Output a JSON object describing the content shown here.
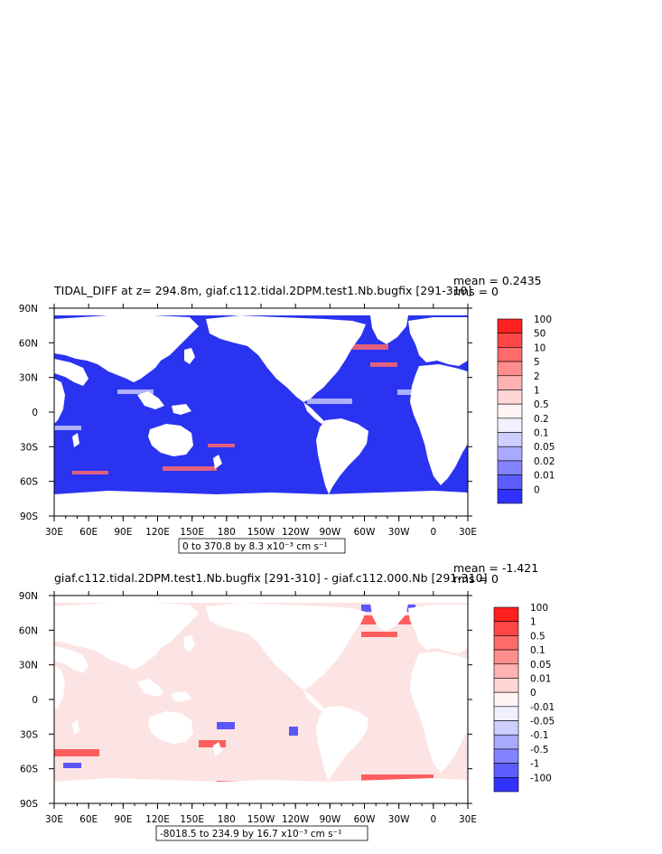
{
  "chart_data": [
    {
      "type": "heatmap",
      "title": "TIDAL_DIFF at z= 294.8m, giaf.c112.tidal.2DPM.test1.Nb.bugfix [291-310]",
      "stats": {
        "mean": "mean = 0.2435",
        "rms": "rms = 0"
      },
      "xticks": [
        "30E",
        "60E",
        "90E",
        "120E",
        "150E",
        "180",
        "150W",
        "120W",
        "90W",
        "60W",
        "30W",
        "0",
        "30E"
      ],
      "yticks": [
        "90N",
        "60N",
        "30N",
        "0",
        "30S",
        "60S",
        "90S"
      ],
      "colorbar": {
        "labels": [
          "100",
          "50",
          "10",
          "5",
          "2",
          "1",
          "0.5",
          "0.2",
          "0.1",
          "0.05",
          "0.02",
          "0.01",
          "0"
        ],
        "colors": [
          "#ff2020",
          "#ff4545",
          "#ff6a6a",
          "#ff8e8e",
          "#ffb2b2",
          "#ffd6d6",
          "#fff4f4",
          "#f0f0ff",
          "#cfcfff",
          "#a9a9ff",
          "#8383ff",
          "#5c5cff",
          "#3232ff"
        ]
      },
      "range_label": "0 to 370.8 by 8.3 x10⁻³ cm s⁻¹",
      "ocean_color": "#2a33f0",
      "land_color": "#ffffff"
    },
    {
      "type": "heatmap",
      "title": "giaf.c112.tidal.2DPM.test1.Nb.bugfix [291-310] - giaf.c112.000.Nb [291-310]",
      "stats": {
        "mean": "mean = -1.421",
        "rms": "rms = 0"
      },
      "xticks": [
        "30E",
        "60E",
        "90E",
        "120E",
        "150E",
        "180",
        "150W",
        "120W",
        "90W",
        "60W",
        "30W",
        "0",
        "30E"
      ],
      "yticks": [
        "90N",
        "60N",
        "30N",
        "0",
        "30S",
        "60S",
        "90S"
      ],
      "colorbar": {
        "labels": [
          "100",
          "1",
          "0.5",
          "0.1",
          "0.05",
          "0.01",
          "0",
          "-0.01",
          "-0.05",
          "-0.1",
          "-0.5",
          "-1",
          "-100"
        ],
        "colors": [
          "#ff2020",
          "#ff4545",
          "#ff6a6a",
          "#ff8e8e",
          "#ffb2b2",
          "#ffd6d6",
          "#fff4f4",
          "#f0f0ff",
          "#cfcfff",
          "#a9a9ff",
          "#8383ff",
          "#5c5cff",
          "#3232ff"
        ]
      },
      "range_label": "-8018.5 to 234.9 by 16.7 x10⁻³ cm s⁻¹",
      "ocean_color": "#fde4e4",
      "land_color": "#ffffff"
    }
  ]
}
